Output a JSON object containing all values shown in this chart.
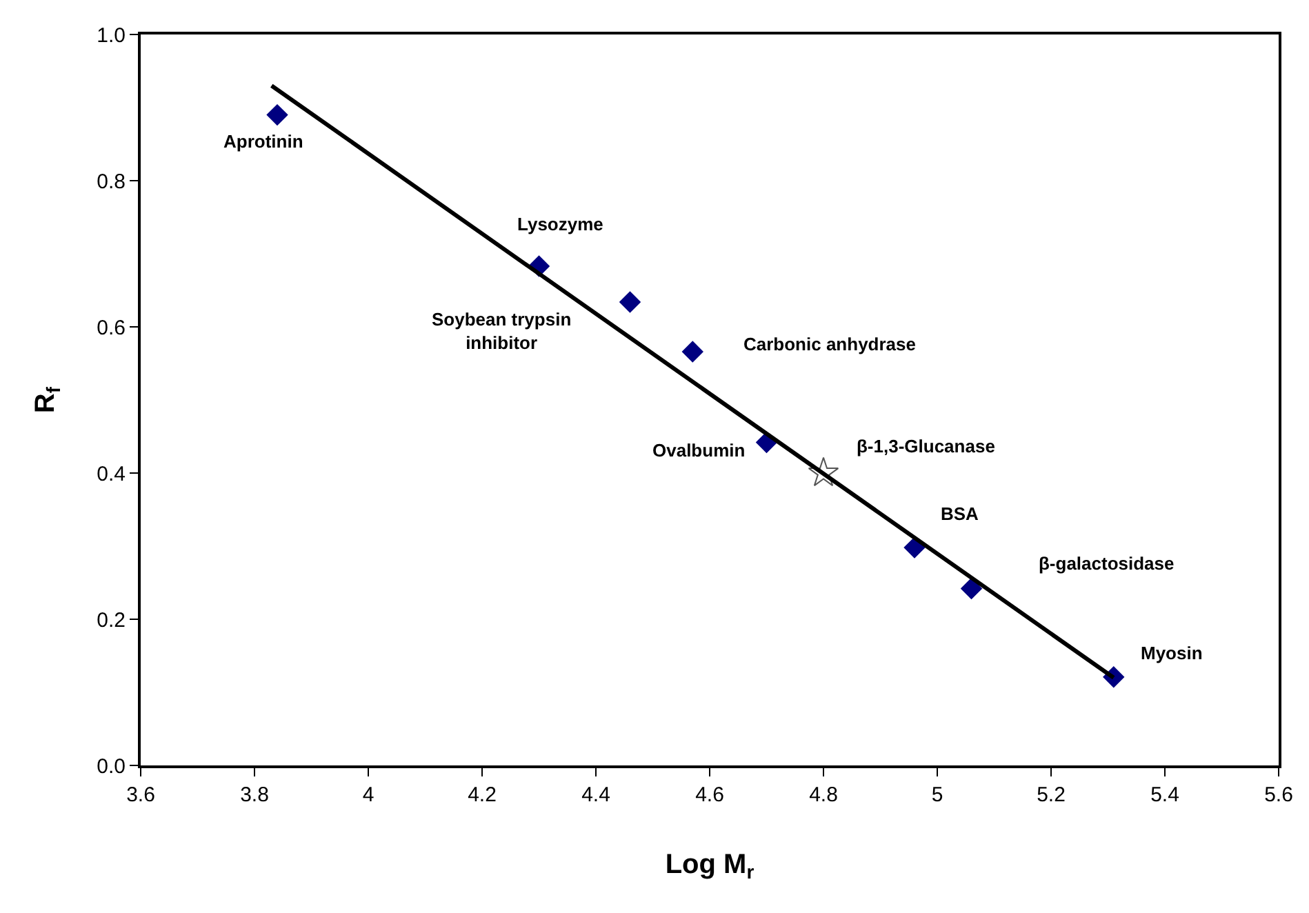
{
  "chart_data": {
    "type": "scatter",
    "xlabel": "Log M$_{r}$",
    "ylabel": "R$_{f}$",
    "xlim": [
      3.6,
      5.6
    ],
    "xticks": [
      3.6,
      3.8,
      4,
      4.2,
      4.4,
      4.6,
      4.8,
      5,
      5.2,
      5.4,
      5.6
    ],
    "ylim": [
      0,
      1.0
    ],
    "yticks": [
      {
        "value": 0,
        "label": "0.0"
      },
      {
        "value": 0.2,
        "label": "0.2"
      },
      {
        "value": 0.4,
        "label": "0.4"
      },
      {
        "value": 0.6,
        "label": "0.6"
      },
      {
        "value": 0.8,
        "label": "0.8"
      },
      {
        "value": 1.0,
        "label": "1.0"
      }
    ],
    "grid": false,
    "legend": false,
    "series": [
      {
        "type": "scatter",
        "marker": "diamond",
        "color": "#000080",
        "x": [
          3.84,
          4.3,
          4.46,
          4.57,
          4.7,
          4.96,
          5.06,
          5.31
        ],
        "values": [
          0.89,
          0.683,
          0.634,
          0.566,
          0.442,
          0.298,
          0.242,
          0.121
        ]
      },
      {
        "type": "scatter",
        "marker": "star",
        "color": "#555555",
        "x": [
          4.8
        ],
        "values": [
          0.4
        ]
      },
      {
        "type": "line",
        "marker": "none",
        "color": "#000000",
        "x": [
          3.83,
          5.31
        ],
        "values": [
          0.93,
          0.12
        ]
      }
    ],
    "annotations": [
      {
        "text": "Aprotinin",
        "x": 3.84,
        "y": 0.89
      },
      {
        "text": "Lysozyme",
        "x": 4.3,
        "y": 0.683
      },
      "Soybean trypsin\ninhibitor",
      {
        "text": "Carbonic anhydrase",
        "x": 4.57,
        "y": 0.566
      },
      {
        "text": "Ovalbumin",
        "x": 4.7,
        "y": 0.442
      },
      {
        "text": "β-1,3-Glucanase",
        "x": 4.8,
        "y": 0.4
      },
      {
        "text": "BSA",
        "x": 4.96,
        "y": 0.298
      },
      "β-galactosidase",
      {
        "text": "Myosin",
        "x": 5.31,
        "y": 0.121
      }
    ]
  }
}
